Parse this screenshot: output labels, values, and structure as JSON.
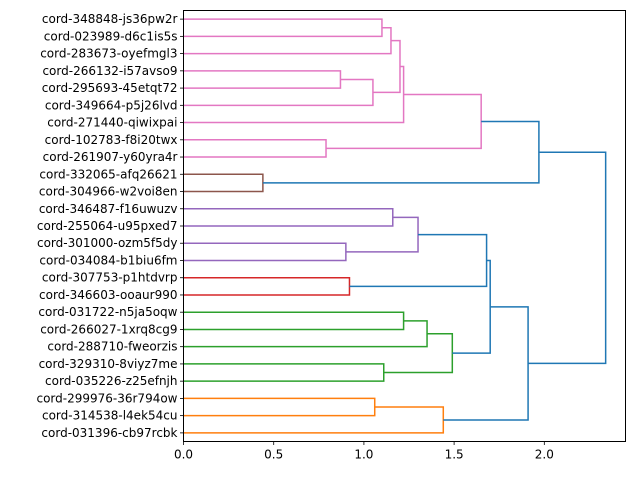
{
  "chart_data": {
    "type": "dendrogram",
    "orientation": "horizontal",
    "title": "",
    "xlabel": "",
    "ylabel": "",
    "xlim": [
      0,
      2.45
    ],
    "xticks": [
      0.0,
      0.5,
      1.0,
      1.5,
      2.0
    ],
    "xtick_labels": [
      "0.0",
      "0.5",
      "1.0",
      "1.5",
      "2.0"
    ],
    "leaves": [
      "cord-348848-js36pw2r",
      "cord-023989-d6c1is5s",
      "cord-283673-oyefmgl3",
      "cord-266132-i57avso9",
      "cord-295693-45etqt72",
      "cord-349664-p5j26lvd",
      "cord-271440-qiwixpai",
      "cord-102783-f8i20twx",
      "cord-261907-y60yra4r",
      "cord-332065-afq26621",
      "cord-304966-w2voi8en",
      "cord-346487-f16uwuzv",
      "cord-255064-u95pxed7",
      "cord-301000-ozm5f5dy",
      "cord-034084-b1biu6fm",
      "cord-307753-p1htdvrp",
      "cord-346603-ooaur990",
      "cord-031722-n5ja5oqw",
      "cord-266027-1xrq8cg9",
      "cord-288710-fweorzis",
      "cord-329310-8viyz7me",
      "cord-035226-z25efnjh",
      "cord-299976-36r794ow",
      "cord-314538-l4ek54cu",
      "cord-031396-cb97rcbk"
    ],
    "colors": {
      "pink": "#e377c2",
      "brown": "#8c564b",
      "purple": "#9467bd",
      "red": "#d62728",
      "green": "#2ca02c",
      "orange": "#ff7f0e",
      "blue": "#1f77b4"
    },
    "merges": [
      {
        "id": "m1",
        "a": "L0",
        "b": "L1",
        "height": 1.1,
        "color": "pink"
      },
      {
        "id": "m2",
        "a": "m1",
        "b": "L2",
        "height": 1.15,
        "color": "pink"
      },
      {
        "id": "m3",
        "a": "L3",
        "b": "L4",
        "height": 0.87,
        "color": "pink"
      },
      {
        "id": "m4",
        "a": "m3",
        "b": "L5",
        "height": 1.05,
        "color": "pink"
      },
      {
        "id": "m5",
        "a": "m2",
        "b": "m4",
        "height": 1.2,
        "color": "pink"
      },
      {
        "id": "m6",
        "a": "m5",
        "b": "L6",
        "height": 1.22,
        "color": "pink"
      },
      {
        "id": "m7",
        "a": "L7",
        "b": "L8",
        "height": 0.79,
        "color": "pink"
      },
      {
        "id": "m8",
        "a": "m6",
        "b": "m7",
        "height": 1.65,
        "color": "pink"
      },
      {
        "id": "m9",
        "a": "L9",
        "b": "L10",
        "height": 0.44,
        "color": "brown"
      },
      {
        "id": "m10",
        "a": "m8",
        "b": "m9",
        "height": 1.97,
        "color": "blue"
      },
      {
        "id": "m11",
        "a": "L11",
        "b": "L12",
        "height": 1.16,
        "color": "purple"
      },
      {
        "id": "m12",
        "a": "L13",
        "b": "L14",
        "height": 0.9,
        "color": "purple"
      },
      {
        "id": "m13",
        "a": "m11",
        "b": "m12",
        "height": 1.3,
        "color": "purple"
      },
      {
        "id": "m14",
        "a": "L15",
        "b": "L16",
        "height": 0.92,
        "color": "red"
      },
      {
        "id": "m15",
        "a": "m13",
        "b": "m14",
        "height": 1.68,
        "color": "blue"
      },
      {
        "id": "m16",
        "a": "L17",
        "b": "L18",
        "height": 1.22,
        "color": "green"
      },
      {
        "id": "m17",
        "a": "m16",
        "b": "L19",
        "height": 1.35,
        "color": "green"
      },
      {
        "id": "m18",
        "a": "L20",
        "b": "L21",
        "height": 1.11,
        "color": "green"
      },
      {
        "id": "m19",
        "a": "m17",
        "b": "m18",
        "height": 1.49,
        "color": "green"
      },
      {
        "id": "m20",
        "a": "m15",
        "b": "m19",
        "height": 1.7,
        "color": "blue"
      },
      {
        "id": "m21",
        "a": "L22",
        "b": "L23",
        "height": 1.06,
        "color": "orange"
      },
      {
        "id": "m22",
        "a": "m21",
        "b": "L24",
        "height": 1.44,
        "color": "orange"
      },
      {
        "id": "m23",
        "a": "m20",
        "b": "m22",
        "height": 1.91,
        "color": "blue"
      },
      {
        "id": "m24",
        "a": "m10",
        "b": "m23",
        "height": 2.34,
        "color": "blue"
      }
    ]
  }
}
